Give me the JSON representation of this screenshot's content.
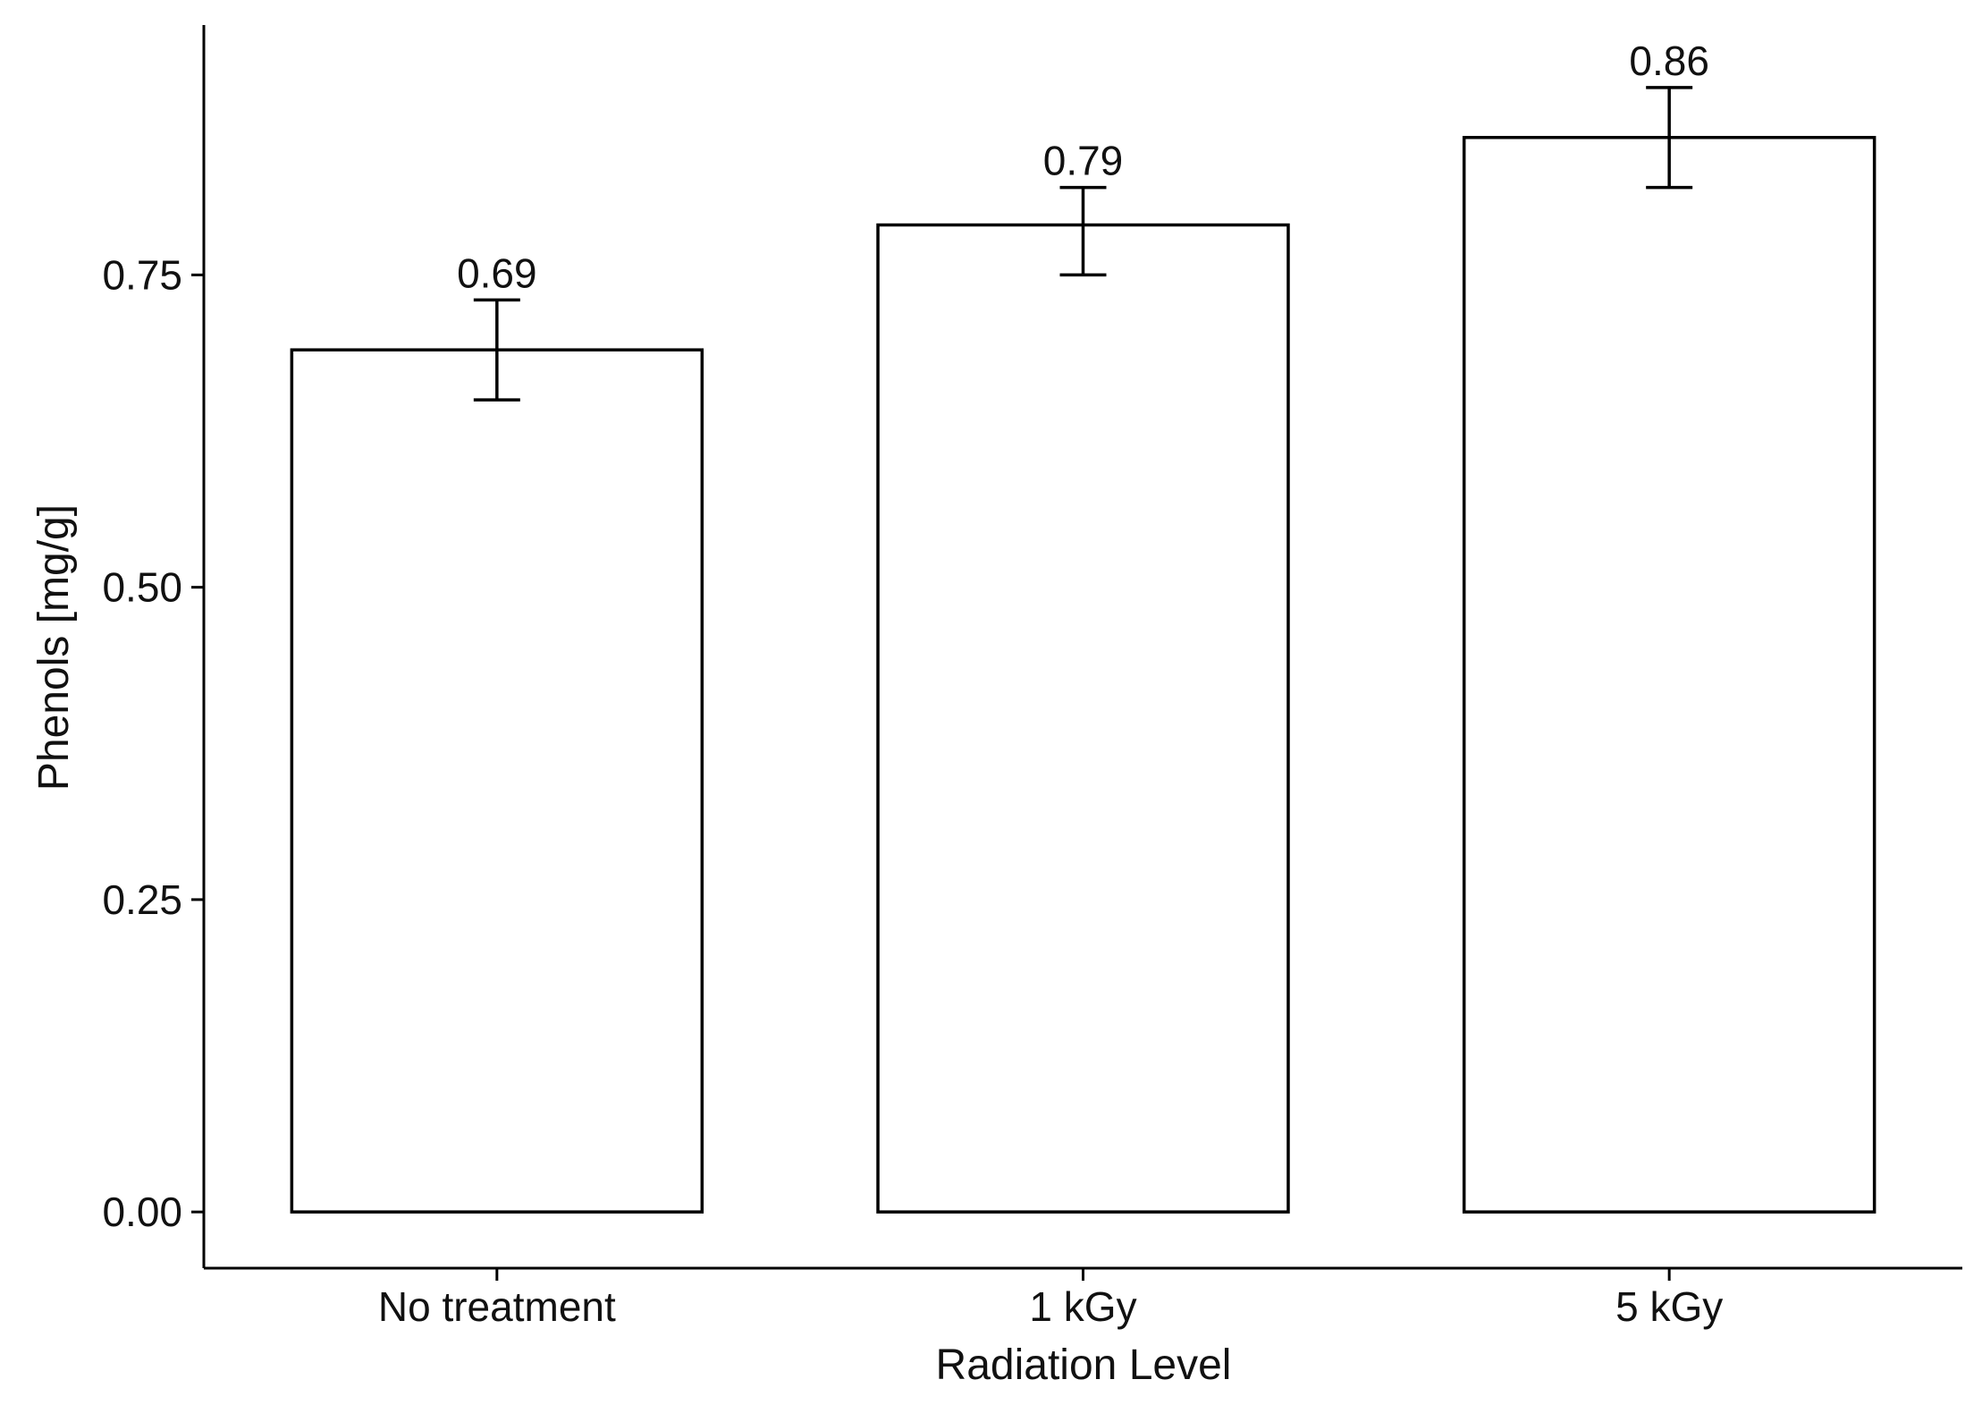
{
  "chart_data": {
    "type": "bar",
    "categories": [
      "No treatment",
      "1 kGy",
      "5 kGy"
    ],
    "values": [
      0.69,
      0.79,
      0.86
    ],
    "error_low": [
      0.65,
      0.75,
      0.82
    ],
    "error_high": [
      0.73,
      0.82,
      0.9
    ],
    "data_labels": [
      "0.69",
      "0.79",
      "0.86"
    ],
    "xlabel": "Radiation Level",
    "ylabel": "Phenols [mg/g]",
    "ylim": [
      -0.045,
      0.95
    ],
    "yticks": [
      0.0,
      0.25,
      0.5,
      0.75
    ],
    "ytick_labels": [
      "0.00",
      "0.25",
      "0.50",
      "0.75"
    ],
    "grid": false,
    "legend": "none",
    "colors": {
      "bar_fill": "#ffffff",
      "bar_edge": "#000000"
    }
  }
}
